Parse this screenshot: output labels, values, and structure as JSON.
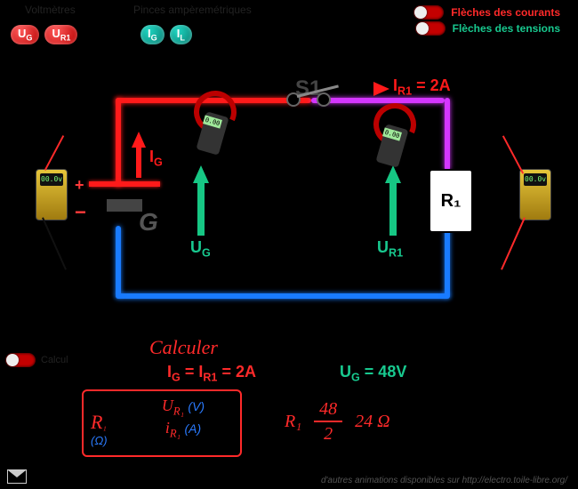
{
  "header": {
    "voltmeters_label": "Voltmètres",
    "ammeters_label": "Pinces ampèremétriques",
    "ug_btn": "U_G",
    "ur1_btn": "U_R1",
    "ig_btn": "I_G",
    "il_btn": "I_L",
    "toggle_currents": "Flèches des courants",
    "toggle_voltages": "Flèches des tensions",
    "calc_label": "Calcul"
  },
  "circuit": {
    "switch_label": "S1",
    "ir1_label": "I_R1 = 2A",
    "ig_label": "I_G",
    "ug_label": "U_G",
    "ur1_label": "U_R1",
    "r1_label": "R₁",
    "gen_label": "G",
    "meter_display": "00.0v",
    "clamp_display": "0.00",
    "colors": {
      "red": "#ff1a1a",
      "magenta": "#d436ff",
      "blue": "#197bff",
      "green": "#16c784"
    }
  },
  "calc": {
    "title": "Calculer",
    "line_ig": "I_G = I_R1 = 2A",
    "line_ug": "U_G = 48V",
    "formula_R": "R₁",
    "formula_num": "U_R₁",
    "formula_num_unit": "(V)",
    "formula_den": "i_R₁",
    "formula_den_unit": "(A)",
    "formula_ohm": "(Ω)",
    "result_R": "R₁",
    "result_num": "48",
    "result_den": "2",
    "result_val": "24 Ω"
  },
  "footer": {
    "credit": "d'autres animations disponibles sur http://electro.toile-libre.org/"
  }
}
